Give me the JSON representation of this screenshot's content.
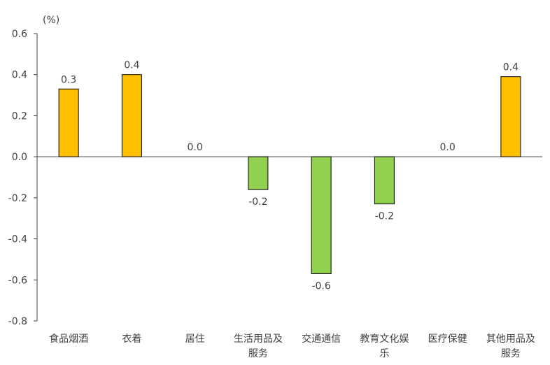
{
  "chart_data": {
    "type": "bar",
    "unit_label": "(%)",
    "categories": [
      [
        "食品烟酒"
      ],
      [
        "衣着"
      ],
      [
        "居住"
      ],
      [
        "生活用品及",
        "服务"
      ],
      [
        "交通通信"
      ],
      [
        "教育文化娱",
        "乐"
      ],
      [
        "医疗保健"
      ],
      [
        "其他用品及",
        "服务"
      ]
    ],
    "values": [
      0.33,
      0.4,
      0.0,
      -0.16,
      -0.57,
      -0.23,
      0.0,
      0.39
    ],
    "data_labels": [
      "0.3",
      "0.4",
      "0.0",
      "-0.2",
      "-0.6",
      "-0.2",
      "0.0",
      "0.4"
    ],
    "ylim": [
      -0.8,
      0.6
    ],
    "yticks": [
      0.6,
      0.4,
      0.2,
      0.0,
      -0.2,
      -0.4,
      -0.6,
      -0.8
    ],
    "ytick_labels": [
      "0.6",
      "0.4",
      "0.2",
      "0.0",
      "-0.2",
      "-0.4",
      "-0.6",
      "-0.8"
    ],
    "colors": {
      "positive": "#FFC000",
      "negative": "#92D050",
      "axis": "#404040",
      "bar_border": "#000000"
    },
    "grid": false,
    "legend": "none"
  }
}
